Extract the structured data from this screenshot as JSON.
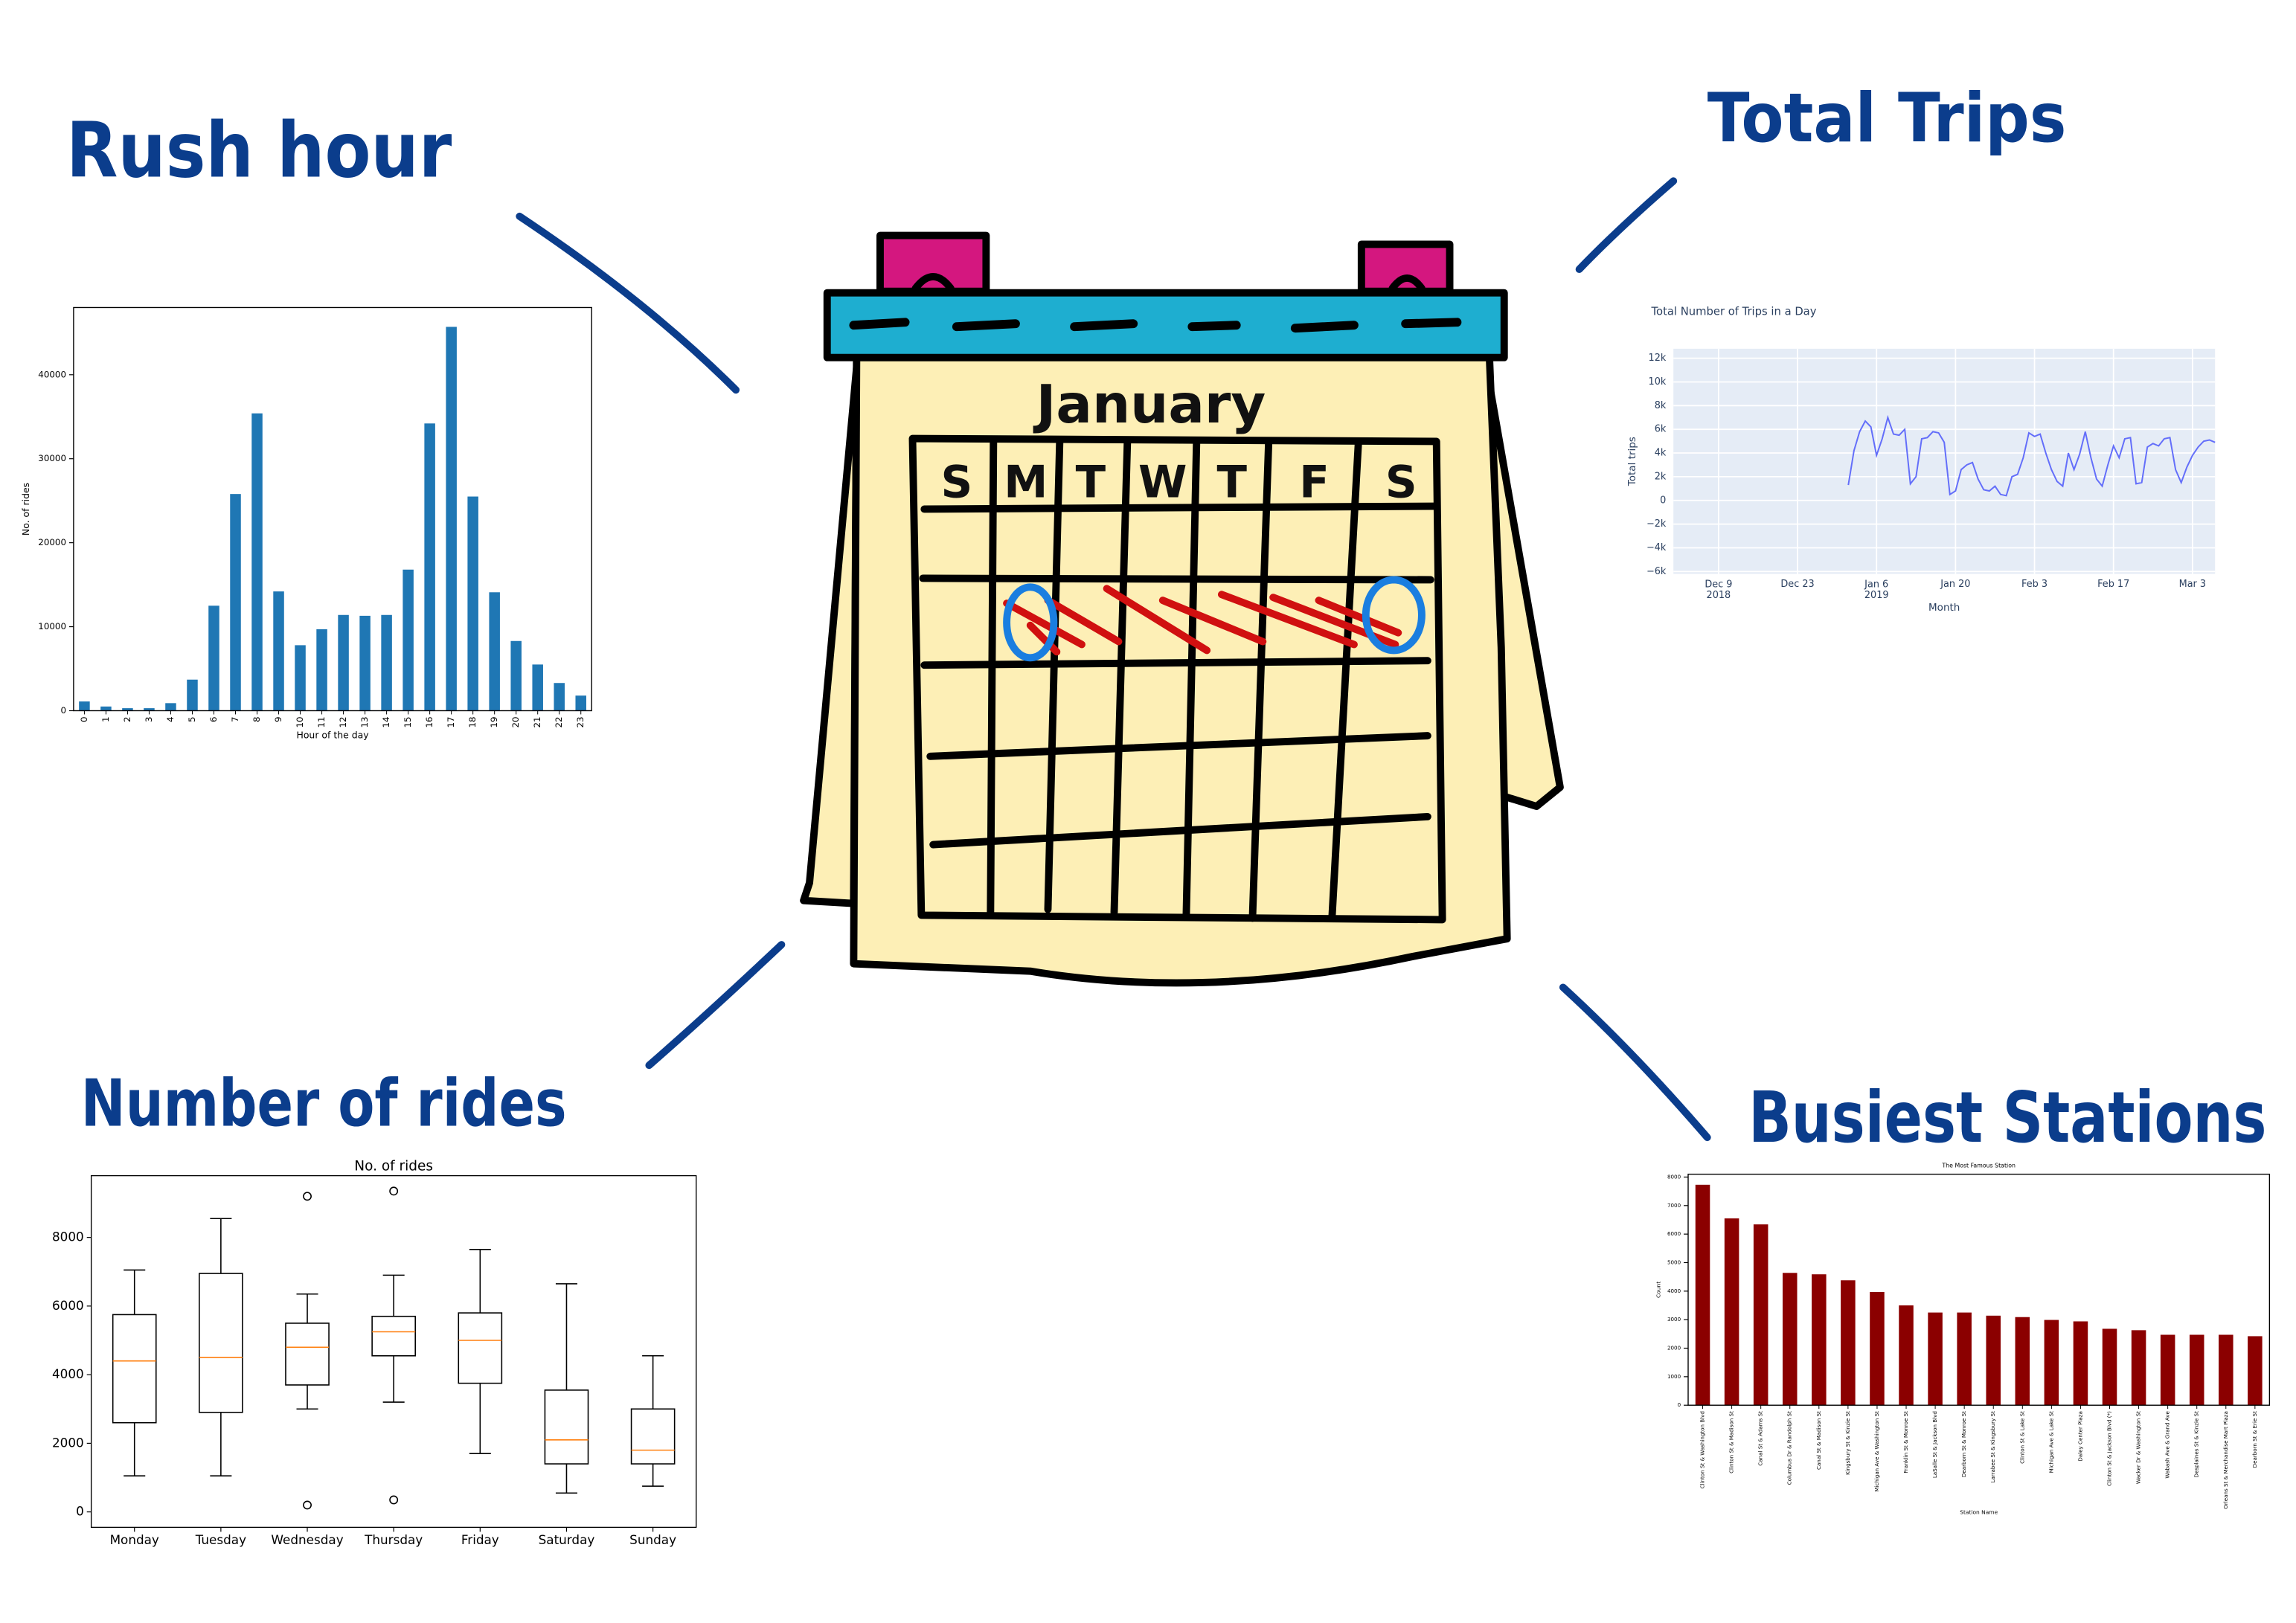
{
  "labels": {
    "rush_hour": "Rush hour",
    "total_trips": "Total Trips",
    "number_of_rides": "Number of rides",
    "busiest_stations": "Busiest Stations"
  },
  "calendar": {
    "month": "January",
    "days": [
      "S",
      "M",
      "T",
      "W",
      "T",
      "F",
      "S"
    ]
  },
  "chart_data": [
    {
      "type": "bar",
      "x_label": "Hour of the day",
      "y_label": "No. of rides",
      "categories": [
        "0",
        "1",
        "2",
        "3",
        "4",
        "5",
        "6",
        "7",
        "8",
        "9",
        "10",
        "11",
        "12",
        "13",
        "14",
        "15",
        "16",
        "17",
        "18",
        "19",
        "20",
        "21",
        "22",
        "23"
      ],
      "values": [
        1100,
        500,
        300,
        300,
        900,
        3700,
        12500,
        25800,
        35400,
        14200,
        7800,
        9700,
        11400,
        11300,
        11400,
        16800,
        34200,
        45700,
        25500,
        14100,
        8300,
        5500,
        3300,
        1800
      ],
      "color": "#1f77b4",
      "ylim": [
        0,
        48000
      ],
      "yticks": [
        0,
        10000,
        20000,
        30000,
        40000
      ]
    },
    {
      "type": "line",
      "title": "Total Number of Trips in a Day",
      "x_label": "Month",
      "y_label": "Total trips",
      "x": [
        "2019-01-01",
        "2019-01-02",
        "2019-01-03",
        "2019-01-04",
        "2019-01-05",
        "2019-01-06",
        "2019-01-07",
        "2019-01-08",
        "2019-01-09",
        "2019-01-10",
        "2019-01-11",
        "2019-01-12",
        "2019-01-13",
        "2019-01-14",
        "2019-01-15",
        "2019-01-16",
        "2019-01-17",
        "2019-01-18",
        "2019-01-19",
        "2019-01-20",
        "2019-01-21",
        "2019-01-22",
        "2019-01-23",
        "2019-01-24",
        "2019-01-25",
        "2019-01-26",
        "2019-01-27",
        "2019-01-28",
        "2019-01-29",
        "2019-01-30",
        "2019-01-31",
        "2019-02-01",
        "2019-02-02",
        "2019-02-03",
        "2019-02-04",
        "2019-02-05",
        "2019-02-06",
        "2019-02-07",
        "2019-02-08",
        "2019-02-09",
        "2019-02-10",
        "2019-02-11",
        "2019-02-12",
        "2019-02-13",
        "2019-02-14",
        "2019-02-15",
        "2019-02-16",
        "2019-02-17",
        "2019-02-18",
        "2019-02-19",
        "2019-02-20",
        "2019-02-21",
        "2019-02-22",
        "2019-02-23",
        "2019-02-24",
        "2019-02-25",
        "2019-02-26",
        "2019-02-27",
        "2019-02-28",
        "2019-03-01",
        "2019-03-02",
        "2019-03-03",
        "2019-03-04",
        "2019-03-05",
        "2019-03-06",
        "2019-03-07"
      ],
      "values": [
        1300,
        4200,
        5800,
        6700,
        6200,
        3800,
        5200,
        7000,
        5600,
        5500,
        6000,
        1400,
        2000,
        5200,
        5300,
        5800,
        5700,
        4900,
        500,
        800,
        2600,
        3000,
        3200,
        1800,
        900,
        800,
        1200,
        500,
        400,
        2000,
        2200,
        3600,
        5700,
        5400,
        5600,
        4000,
        2600,
        1600,
        1200,
        4000,
        2600,
        3900,
        5800,
        3600,
        1800,
        1200,
        3000,
        4600,
        3600,
        5200,
        5300,
        1400,
        1500,
        4500,
        4800,
        4600,
        5200,
        5300,
        2600,
        1500,
        2800,
        3800,
        4500,
        5000,
        5100,
        4900
      ],
      "color": "#636efa",
      "background": "#e5ecf6",
      "grid": true,
      "xlim": [
        "2018-12-01",
        "2019-03-07"
      ],
      "ylim": [
        -6200,
        12800
      ],
      "xticks": [
        {
          "value": "2018-12-09",
          "label": "Dec 9\n2018"
        },
        {
          "value": "2018-12-23",
          "label": "Dec 23"
        },
        {
          "value": "2019-01-06",
          "label": "Jan 6\n2019"
        },
        {
          "value": "2019-01-20",
          "label": "Jan 20"
        },
        {
          "value": "2019-02-03",
          "label": "Feb 3"
        },
        {
          "value": "2019-02-17",
          "label": "Feb 17"
        },
        {
          "value": "2019-03-03",
          "label": "Mar 3"
        }
      ],
      "yticks": [
        {
          "value": -6000,
          "label": "−6k"
        },
        {
          "value": -4000,
          "label": "−4k"
        },
        {
          "value": -2000,
          "label": "−2k"
        },
        0,
        {
          "value": 2000,
          "label": "2k"
        },
        {
          "value": 4000,
          "label": "4k"
        },
        {
          "value": 6000,
          "label": "6k"
        },
        {
          "value": 8000,
          "label": "8k"
        },
        {
          "value": 10000,
          "label": "10k"
        },
        {
          "value": 12000,
          "label": "12k"
        }
      ]
    },
    {
      "type": "box",
      "title": "No. of rides",
      "categories": [
        "Monday",
        "Tuesday",
        "Wednesday",
        "Thursday",
        "Friday",
        "Saturday",
        "Sunday"
      ],
      "boxes": [
        {
          "whislo": 1050,
          "q1": 2600,
          "med": 4400,
          "q3": 5750,
          "whishi": 7050,
          "fliers": []
        },
        {
          "whislo": 1050,
          "q1": 2900,
          "med": 4500,
          "q3": 6950,
          "whishi": 8550,
          "fliers": []
        },
        {
          "whislo": 3000,
          "q1": 3700,
          "med": 4800,
          "q3": 5500,
          "whishi": 6350,
          "fliers": [
            9200,
            200
          ]
        },
        {
          "whislo": 3200,
          "q1": 4550,
          "med": 5250,
          "q3": 5700,
          "whishi": 6900,
          "fliers": [
            9350,
            350
          ]
        },
        {
          "whislo": 1700,
          "q1": 3750,
          "med": 5000,
          "q3": 5800,
          "whishi": 7650,
          "fliers": []
        },
        {
          "whislo": 550,
          "q1": 1400,
          "med": 2100,
          "q3": 3550,
          "whishi": 6650,
          "fliers": []
        },
        {
          "whislo": 750,
          "q1": 1400,
          "med": 1800,
          "q3": 3000,
          "whishi": 4550,
          "fliers": []
        }
      ],
      "color": "#000000",
      "median_color": "#ff7f0e",
      "ylim": [
        -450,
        9800
      ],
      "yticks": [
        0,
        2000,
        4000,
        6000,
        8000
      ]
    },
    {
      "type": "bar",
      "title": "The Most Famous Station",
      "x_label": "Station Name",
      "y_label": "Count",
      "categories": [
        "Clinton St & Washington Blvd",
        "Clinton St & Madison St",
        "Canal St & Adams St",
        "Columbus Dr & Randolph St",
        "Canal St & Madison St",
        "Kingsbury St & Kinzie St",
        "Michigan Ave & Washington St",
        "Franklin St & Monroe St",
        "LaSalle St & Jackson Blvd",
        "Dearborn St & Monroe St",
        "Larrabee St & Kingsbury St",
        "Clinton St & Lake St",
        "Michigan Ave & Lake St",
        "Daley Center Plaza",
        "Clinton St & Jackson Blvd (*)",
        "Wacker Dr & Washington St",
        "Wabash Ave & Grand Ave",
        "Desplaines St & Kinzie St",
        "Orleans St & Merchandise Mart Plaza",
        "Dearborn St & Erie St"
      ],
      "values": [
        7730,
        6550,
        6340,
        4640,
        4590,
        4380,
        3970,
        3500,
        3250,
        3250,
        3140,
        3090,
        2990,
        2940,
        2680,
        2630,
        2470,
        2470,
        2470,
        2420
      ],
      "color": "#8b0000",
      "ylim": [
        0,
        8100
      ],
      "yticks": [
        0,
        1000,
        2000,
        3000,
        4000,
        5000,
        6000,
        7000,
        8000
      ]
    }
  ]
}
